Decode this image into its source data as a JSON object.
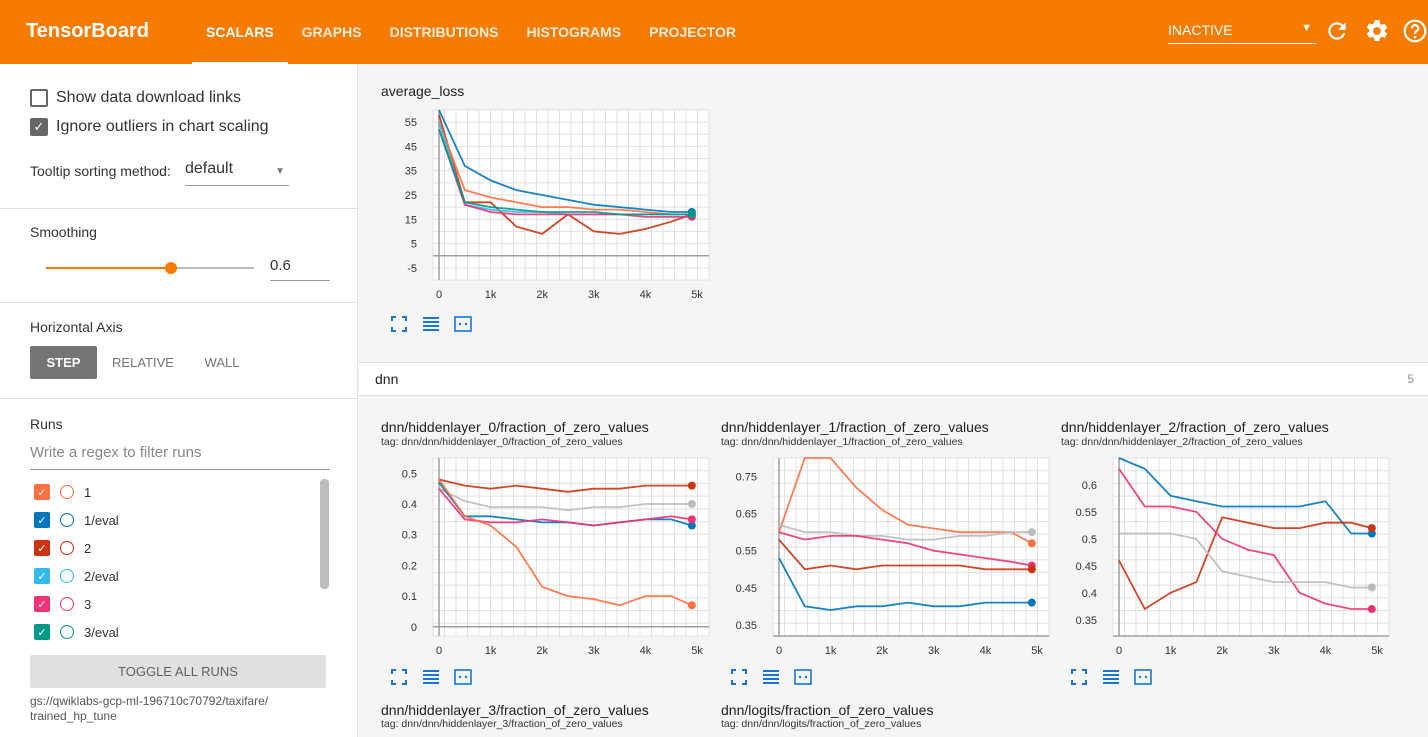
{
  "header": {
    "title": "TensorBoard",
    "tabs": [
      {
        "label": "SCALARS",
        "active": true
      },
      {
        "label": "GRAPHS",
        "active": false
      },
      {
        "label": "DISTRIBUTIONS",
        "active": false
      },
      {
        "label": "HISTOGRAMS",
        "active": false
      },
      {
        "label": "PROJECTOR",
        "active": false
      }
    ],
    "run_selector": "INACTIVE",
    "icons": [
      "refresh-icon",
      "settings-icon",
      "help-icon"
    ]
  },
  "sidebar": {
    "show_download_links": {
      "label": "Show data download links",
      "checked": false
    },
    "ignore_outliers": {
      "label": "Ignore outliers in chart scaling",
      "checked": true
    },
    "tooltip_label": "Tooltip sorting method:",
    "tooltip_value": "default",
    "smoothing_label": "Smoothing",
    "smoothing_value": "0.6",
    "horizontal_axis_label": "Horizontal Axis",
    "axis_options": [
      "STEP",
      "RELATIVE",
      "WALL"
    ],
    "axis_selected": "STEP",
    "runs_label": "Runs",
    "runs_filter_placeholder": "Write a regex to filter runs",
    "runs": [
      {
        "name": "1",
        "color": "#ff7043"
      },
      {
        "name": "1/eval",
        "color": "#0077bb"
      },
      {
        "name": "2",
        "color": "#cc3311"
      },
      {
        "name": "2/eval",
        "color": "#33bbee"
      },
      {
        "name": "3",
        "color": "#ee3377"
      },
      {
        "name": "3/eval",
        "color": "#009988"
      }
    ],
    "toggle_all_label": "TOGGLE ALL RUNS",
    "logdir": "gs://qwiklabs-gcp-ml-196710c70792/taxifare/\ntrained_hp_tune"
  },
  "section": {
    "name": "dnn",
    "count": "5"
  },
  "charts": [
    {
      "id": "average_loss",
      "title": "average_loss",
      "tag": "",
      "x_ticks": [
        "0",
        "1k",
        "2k",
        "3k",
        "4k",
        "5k"
      ],
      "y_ticks": [
        "55",
        "45",
        "35",
        "25",
        "15",
        "5",
        "-5"
      ]
    },
    {
      "id": "h0",
      "title": "dnn/hiddenlayer_0/fraction_of_zero_values",
      "tag": "tag: dnn/dnn/hiddenlayer_0/fraction_of_zero_values",
      "x_ticks": [
        "0",
        "1k",
        "2k",
        "3k",
        "4k",
        "5k"
      ],
      "y_ticks": [
        "0.5",
        "0.4",
        "0.3",
        "0.2",
        "0.1",
        "0"
      ]
    },
    {
      "id": "h1",
      "title": "dnn/hiddenlayer_1/fraction_of_zero_values",
      "tag": "tag: dnn/dnn/hiddenlayer_1/fraction_of_zero_values",
      "x_ticks": [
        "0",
        "1k",
        "2k",
        "3k",
        "4k",
        "5k"
      ],
      "y_ticks": [
        "0.75",
        "0.65",
        "0.55",
        "0.45",
        "0.35"
      ]
    },
    {
      "id": "h2",
      "title": "dnn/hiddenlayer_2/fraction_of_zero_values",
      "tag": "tag: dnn/dnn/hiddenlayer_2/fraction_of_zero_values",
      "x_ticks": [
        "0",
        "1k",
        "2k",
        "3k",
        "4k",
        "5k"
      ],
      "y_ticks": [
        "0.6",
        "0.55",
        "0.5",
        "0.45",
        "0.4",
        "0.35"
      ]
    },
    {
      "id": "h3",
      "title": "dnn/hiddenlayer_3/fraction_of_zero_values",
      "tag": "tag: dnn/dnn/hiddenlayer_3/fraction_of_zero_values"
    },
    {
      "id": "logits",
      "title": "dnn/logits/fraction_of_zero_values",
      "tag": "tag: dnn/dnn/logits/fraction_of_zero_values"
    }
  ],
  "chart_data": [
    {
      "type": "line",
      "title": "average_loss",
      "xlim": [
        0,
        5000
      ],
      "ylim": [
        -10,
        60
      ],
      "x": [
        0,
        500,
        1000,
        1500,
        2000,
        2500,
        3000,
        3500,
        4000,
        4500,
        4900
      ],
      "series": [
        {
          "color": "#0077bb",
          "values": [
            60,
            37,
            31,
            27,
            25,
            23,
            21,
            20,
            19,
            18,
            18
          ]
        },
        {
          "color": "#cc3311",
          "values": [
            58,
            22,
            22,
            12,
            9,
            17,
            10,
            9,
            11,
            14,
            17
          ]
        },
        {
          "color": "#ff7043",
          "values": [
            55,
            27,
            24,
            22,
            20,
            20,
            19,
            19,
            18,
            17,
            17
          ]
        },
        {
          "color": "#33bbee",
          "values": [
            55,
            21,
            19,
            18,
            18,
            17,
            17,
            17,
            17,
            17,
            17
          ]
        },
        {
          "color": "#ee3377",
          "values": [
            52,
            21,
            18,
            17,
            17,
            17,
            17,
            17,
            16,
            16,
            16
          ]
        },
        {
          "color": "#009988",
          "values": [
            52,
            22,
            20,
            19,
            18,
            18,
            18,
            17,
            17,
            17,
            17
          ]
        }
      ]
    },
    {
      "type": "line",
      "title": "dnn/hiddenlayer_0/fraction_of_zero_values",
      "xlim": [
        0,
        5000
      ],
      "ylim": [
        -0.03,
        0.55
      ],
      "x": [
        0,
        500,
        1000,
        1500,
        2000,
        2500,
        3000,
        3500,
        4000,
        4500,
        4900
      ],
      "series": [
        {
          "color": "#cc3311",
          "values": [
            0.48,
            0.46,
            0.45,
            0.46,
            0.45,
            0.44,
            0.45,
            0.45,
            0.46,
            0.46,
            0.46
          ]
        },
        {
          "color": "#bbbbbb",
          "values": [
            0.45,
            0.41,
            0.39,
            0.39,
            0.39,
            0.38,
            0.39,
            0.39,
            0.4,
            0.4,
            0.4
          ]
        },
        {
          "color": "#0077bb",
          "values": [
            0.47,
            0.36,
            0.36,
            0.35,
            0.34,
            0.34,
            0.33,
            0.34,
            0.35,
            0.35,
            0.33
          ]
        },
        {
          "color": "#ee3377",
          "values": [
            0.45,
            0.35,
            0.34,
            0.34,
            0.35,
            0.34,
            0.33,
            0.34,
            0.35,
            0.36,
            0.35
          ]
        },
        {
          "color": "#ff7043",
          "values": [
            0.48,
            0.36,
            0.33,
            0.26,
            0.13,
            0.1,
            0.09,
            0.07,
            0.1,
            0.1,
            0.07
          ]
        }
      ]
    },
    {
      "type": "line",
      "title": "dnn/hiddenlayer_1/fraction_of_zero_values",
      "xlim": [
        0,
        5000
      ],
      "ylim": [
        0.32,
        0.8
      ],
      "x": [
        0,
        500,
        1000,
        1500,
        2000,
        2500,
        3000,
        3500,
        4000,
        4500,
        4900
      ],
      "series": [
        {
          "color": "#ff7043",
          "values": [
            0.6,
            0.8,
            0.8,
            0.72,
            0.66,
            0.62,
            0.61,
            0.6,
            0.6,
            0.6,
            0.57
          ]
        },
        {
          "color": "#bbbbbb",
          "values": [
            0.62,
            0.6,
            0.6,
            0.59,
            0.59,
            0.58,
            0.58,
            0.59,
            0.59,
            0.6,
            0.6
          ]
        },
        {
          "color": "#ee3377",
          "values": [
            0.6,
            0.58,
            0.59,
            0.59,
            0.58,
            0.57,
            0.55,
            0.54,
            0.53,
            0.52,
            0.51
          ]
        },
        {
          "color": "#cc3311",
          "values": [
            0.58,
            0.5,
            0.51,
            0.5,
            0.51,
            0.51,
            0.51,
            0.51,
            0.5,
            0.5,
            0.5
          ]
        },
        {
          "color": "#0077bb",
          "values": [
            0.53,
            0.4,
            0.39,
            0.4,
            0.4,
            0.41,
            0.4,
            0.4,
            0.41,
            0.41,
            0.41
          ]
        }
      ]
    },
    {
      "type": "line",
      "title": "dnn/hiddenlayer_2/fraction_of_zero_values",
      "xlim": [
        0,
        5000
      ],
      "ylim": [
        0.32,
        0.65
      ],
      "x": [
        0,
        500,
        1000,
        1500,
        2000,
        2500,
        3000,
        3500,
        4000,
        4500,
        4900
      ],
      "series": [
        {
          "color": "#0077bb",
          "values": [
            0.65,
            0.63,
            0.58,
            0.57,
            0.56,
            0.56,
            0.56,
            0.56,
            0.57,
            0.51,
            0.51
          ]
        },
        {
          "color": "#cc3311",
          "values": [
            0.46,
            0.37,
            0.4,
            0.42,
            0.54,
            0.53,
            0.52,
            0.52,
            0.53,
            0.53,
            0.52
          ]
        },
        {
          "color": "#ee3377",
          "values": [
            0.63,
            0.56,
            0.56,
            0.55,
            0.5,
            0.48,
            0.47,
            0.4,
            0.38,
            0.37,
            0.37
          ]
        },
        {
          "color": "#bbbbbb",
          "values": [
            0.51,
            0.51,
            0.51,
            0.5,
            0.44,
            0.43,
            0.42,
            0.42,
            0.42,
            0.41,
            0.41
          ]
        }
      ]
    }
  ]
}
